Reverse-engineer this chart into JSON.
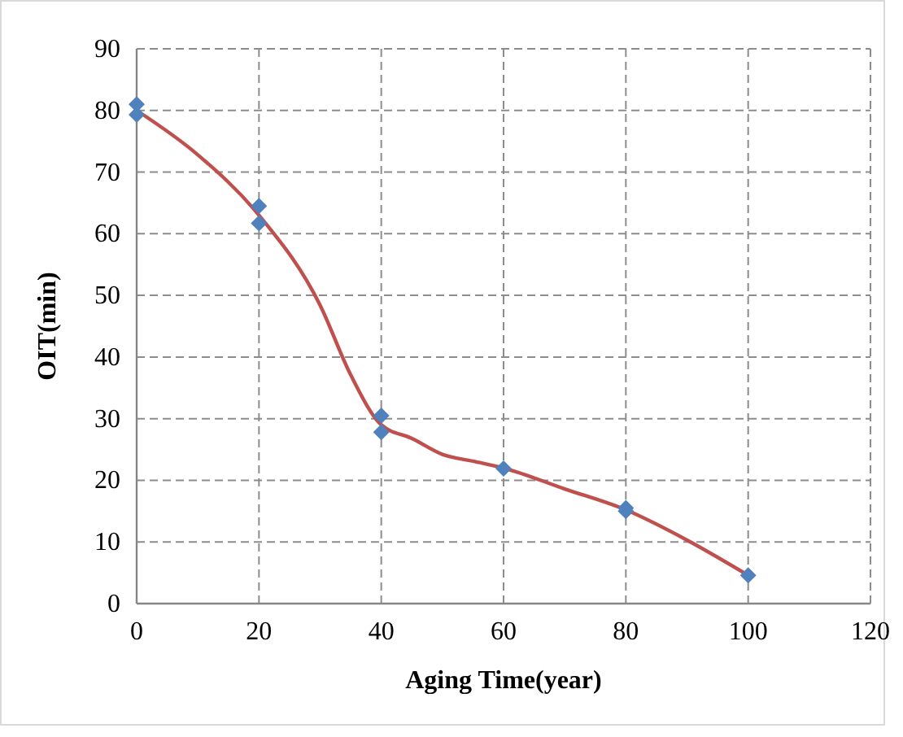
{
  "chart_data": {
    "type": "scatter",
    "xlabel": "Aging Time(year)",
    "ylabel": "OIT(min)",
    "xlim": [
      0,
      120
    ],
    "xticks": [
      0,
      20,
      40,
      60,
      80,
      100,
      120
    ],
    "ylim": [
      0,
      90
    ],
    "yticks": [
      0,
      10,
      20,
      30,
      40,
      50,
      60,
      70,
      80,
      90
    ],
    "grid": true,
    "legend": false,
    "series": [
      {
        "type": "line",
        "color": "#c0504d",
        "marker": "none",
        "line_style": "solid",
        "x": [
          0,
          10,
          20,
          30,
          35,
          40,
          45,
          50,
          55,
          60,
          70,
          80,
          90,
          100
        ],
        "values": [
          80,
          72.8,
          63,
          48.4,
          37.1,
          29,
          26.8,
          24.2,
          23.1,
          22,
          18.6,
          15.2,
          10.3,
          4.6
        ]
      },
      {
        "color": "#4f81bd",
        "marker": "diamond",
        "x": [
          0,
          0,
          20,
          20,
          40,
          40,
          60,
          80,
          80,
          100
        ],
        "values": [
          81,
          79.3,
          64.5,
          61.7,
          30.5,
          27.8,
          21.9,
          15.5,
          15,
          4.6
        ]
      }
    ]
  }
}
